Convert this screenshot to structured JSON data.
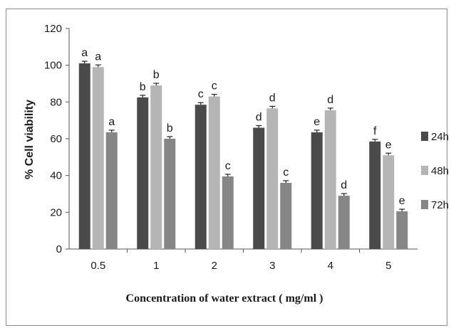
{
  "chart_data": {
    "type": "bar",
    "title": "",
    "xlabel": "Concentration of water extract ( mg/ml )",
    "ylabel": "% Cell viability",
    "ylim": [
      0,
      120
    ],
    "yticks": [
      "0",
      "20",
      "40",
      "60",
      "80",
      "100",
      "120"
    ],
    "categories": [
      "0.5",
      "1",
      "2",
      "3",
      "4",
      "5"
    ],
    "grid": false,
    "error_bars": true,
    "legend_position": "right",
    "series": [
      {
        "name": "24h",
        "color": "#4a4a4a",
        "values": [
          101,
          82.5,
          78.5,
          66,
          63.5,
          58.5
        ],
        "letters": [
          "a",
          "b",
          "c",
          "d",
          "e",
          "f"
        ]
      },
      {
        "name": "48h",
        "color": "#b5b5b5",
        "values": [
          99,
          89,
          83,
          76.5,
          75.5,
          51
        ],
        "letters": [
          "a",
          "b",
          "c",
          "d",
          "d",
          "e"
        ]
      },
      {
        "name": "72h",
        "color": "#868686",
        "values": [
          63.5,
          60,
          39.5,
          36,
          29,
          20.5
        ],
        "letters": [
          "a",
          "b",
          "c",
          "c",
          "d",
          "e"
        ]
      }
    ]
  }
}
